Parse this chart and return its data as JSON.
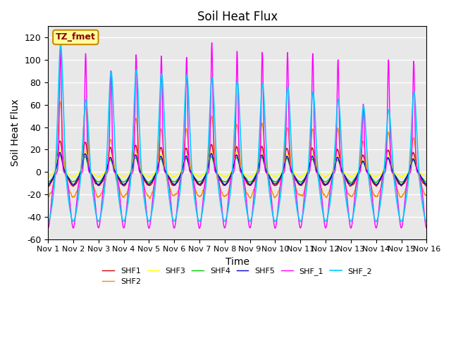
{
  "title": "Soil Heat Flux",
  "xlabel": "Time",
  "ylabel": "Soil Heat Flux",
  "ylim": [
    -60,
    130
  ],
  "xlim": [
    0,
    15
  ],
  "xtick_labels": [
    "Nov 1",
    "Nov 2",
    "Nov 3",
    "Nov 4",
    "Nov 5",
    "Nov 6",
    "Nov 7",
    "Nov 8",
    "Nov 9",
    "Nov 10",
    "Nov 11",
    "Nov 12",
    "Nov 13",
    "Nov 14",
    "Nov 15",
    "Nov 16"
  ],
  "ytick_labels": [
    "-60",
    "-40",
    "-20",
    "0",
    "20",
    "40",
    "60",
    "80",
    "100",
    "120"
  ],
  "yticks": [
    -60,
    -40,
    -20,
    0,
    20,
    40,
    60,
    80,
    100,
    120
  ],
  "legend_entries": [
    "SHF1",
    "SHF2",
    "SHF3",
    "SHF4",
    "SHF5",
    "SHF_1",
    "SHF_2"
  ],
  "colors": {
    "SHF1": "#cc0000",
    "SHF2": "#ff8800",
    "SHF3": "#ffff00",
    "SHF4": "#00cc00",
    "SHF5": "#0000cc",
    "SHF_1": "#ff00ff",
    "SHF_2": "#00ccff"
  },
  "annotation_text": "TZ_fmet",
  "annotation_box_color": "#ffff99",
  "annotation_box_edge": "#cc8800",
  "annotation_text_color": "#880000",
  "background_color": "#e8e8e8",
  "n_days": 15,
  "dt": 0.005
}
